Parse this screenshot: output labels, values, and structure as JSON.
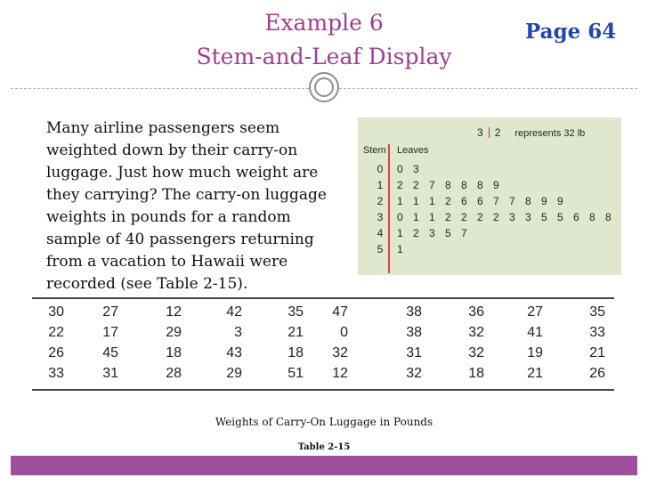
{
  "slide": {
    "title_line1": "Example 6",
    "title_line2": "Stem-and-Leaf Display",
    "page_label": "Page 64",
    "paragraph": "Many airline passengers seem weighted down by their carry-on luggage. Just how much weight are they carrying? The carry-on luggage weights in pounds for a random sample of 40 passengers returning from a vacation to Hawaii were recorded (see Table 2-15).",
    "caption": "Weights of Carry-On Luggage in Pounds",
    "table_label": "Table 2-15"
  },
  "stem_leaf": {
    "key_stem": "3",
    "key_leaf": "2",
    "key_text": "represents 32 lb",
    "header_stem": "Stem",
    "header_leaves": "Leaves",
    "rows": [
      {
        "stem": "0",
        "leaves": [
          "0",
          "3"
        ]
      },
      {
        "stem": "1",
        "leaves": [
          "2",
          "2",
          "7",
          "8",
          "8",
          "8",
          "9"
        ]
      },
      {
        "stem": "2",
        "leaves": [
          "1",
          "1",
          "1",
          "2",
          "6",
          "6",
          "7",
          "7",
          "8",
          "9",
          "9"
        ]
      },
      {
        "stem": "3",
        "leaves": [
          "0",
          "1",
          "1",
          "2",
          "2",
          "2",
          "2",
          "3",
          "3",
          "5",
          "5",
          "6",
          "8",
          "8"
        ]
      },
      {
        "stem": "4",
        "leaves": [
          "1",
          "2",
          "3",
          "5",
          "7"
        ]
      },
      {
        "stem": "5",
        "leaves": [
          "1"
        ]
      }
    ]
  },
  "table": {
    "rows": [
      [
        "30",
        "27",
        "12",
        "42",
        "35",
        "47",
        "38",
        "36",
        "27",
        "35"
      ],
      [
        "22",
        "17",
        "29",
        "3",
        "21",
        "0",
        "38",
        "32",
        "41",
        "33"
      ],
      [
        "26",
        "45",
        "18",
        "43",
        "18",
        "32",
        "31",
        "32",
        "19",
        "21"
      ],
      [
        "33",
        "31",
        "28",
        "29",
        "51",
        "12",
        "32",
        "18",
        "21",
        "26"
      ]
    ]
  },
  "colors": {
    "title": "#9b3f93",
    "page_label": "#2446a8",
    "stem_leaf_bg": "#dfe8cf",
    "stem_leaf_divider": "#c94848",
    "footer_bar": "#9d4f9e"
  }
}
